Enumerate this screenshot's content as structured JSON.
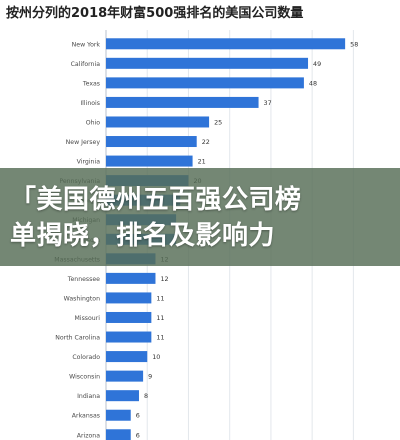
{
  "header": {
    "title": "按州分列的2018年财富500强排名的美国公司数量"
  },
  "banner": {
    "line1": "「美国德州五百强公司榜",
    "line2": "单揭晓，排名及影响力"
  },
  "colors": {
    "bar": "#2f74d8",
    "grid": "#e3e7ec",
    "axis": "#b9c2cc",
    "label": "#4a4a4a",
    "value": "#333333"
  },
  "chart_data": {
    "type": "bar",
    "orientation": "horizontal",
    "title": "按州分列的2018年财富500强排名的美国公司数量",
    "categories": [
      "New York",
      "California",
      "Texas",
      "Illinois",
      "Ohio",
      "New Jersey",
      "Virginia",
      "Pennsylvania",
      "Georgia",
      "Michigan",
      "Minnesota",
      "Massachusetts",
      "Tennessee",
      "Washington",
      "Missouri",
      "North Carolina",
      "Colorado",
      "Wisconsin",
      "Indiana",
      "Arkansas",
      "Arizona"
    ],
    "values": [
      58,
      49,
      48,
      37,
      25,
      22,
      21,
      20,
      18,
      17,
      17,
      12,
      12,
      11,
      11,
      11,
      10,
      9,
      8,
      6,
      6
    ],
    "hidden_value_labels": [
      8,
      9,
      10
    ],
    "xlim": [
      0,
      65
    ],
    "grid": true,
    "xlabel": "",
    "ylabel": ""
  }
}
